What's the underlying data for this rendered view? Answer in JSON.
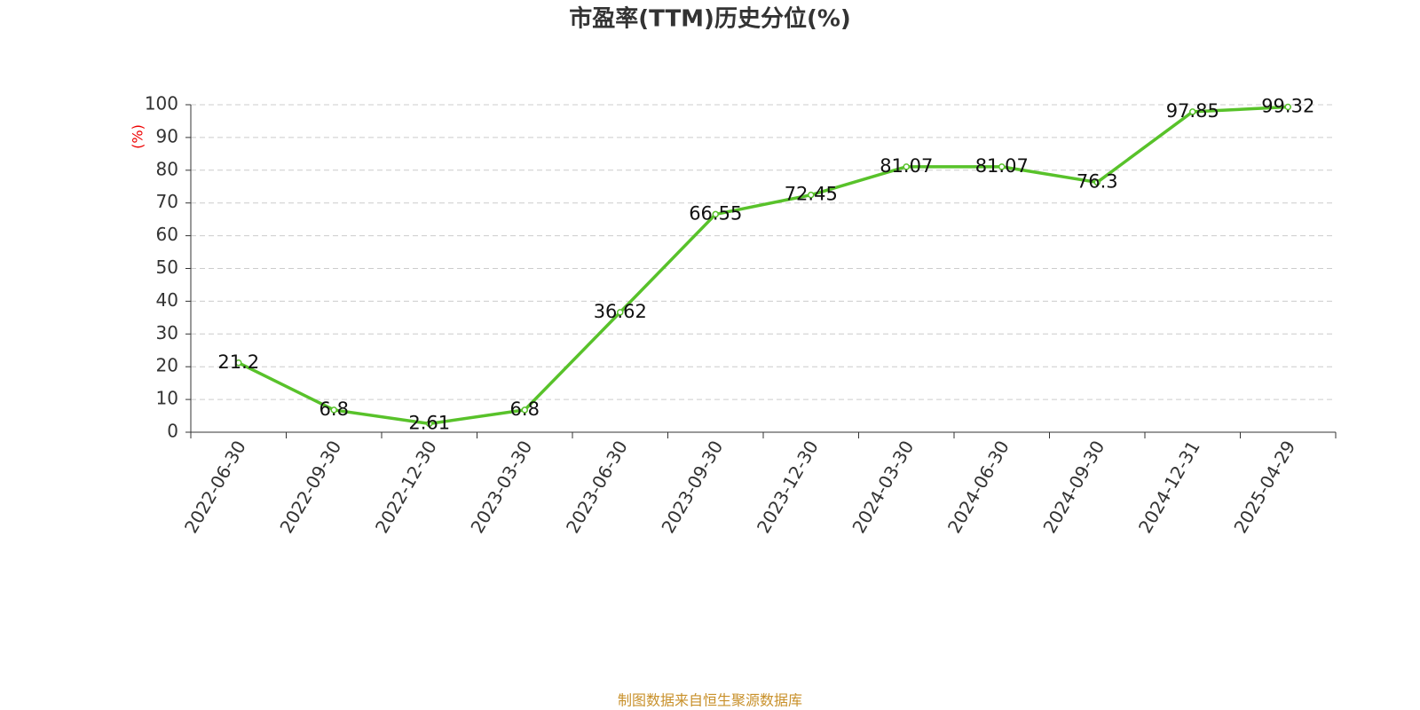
{
  "chart_data": {
    "type": "line",
    "title": "市盈率(TTM)历史分位(%)",
    "y_label": "(%)",
    "categories": [
      "2022-06-30",
      "2022-09-30",
      "2022-12-30",
      "2023-03-30",
      "2023-06-30",
      "2023-09-30",
      "2023-12-30",
      "2024-03-30",
      "2024-06-30",
      "2024-09-30",
      "2024-12-31",
      "2025-04-29"
    ],
    "values": [
      21.2,
      6.8,
      2.61,
      6.8,
      36.62,
      66.55,
      72.45,
      81.07,
      81.07,
      76.3,
      97.85,
      99.32
    ],
    "color": "#58c22a",
    "ylim": [
      0,
      100
    ],
    "yticks": [
      0,
      10,
      20,
      30,
      40,
      50,
      60,
      70,
      80,
      90,
      100
    ],
    "grid": true,
    "source": "制图数据来自恒生聚源数据库"
  }
}
